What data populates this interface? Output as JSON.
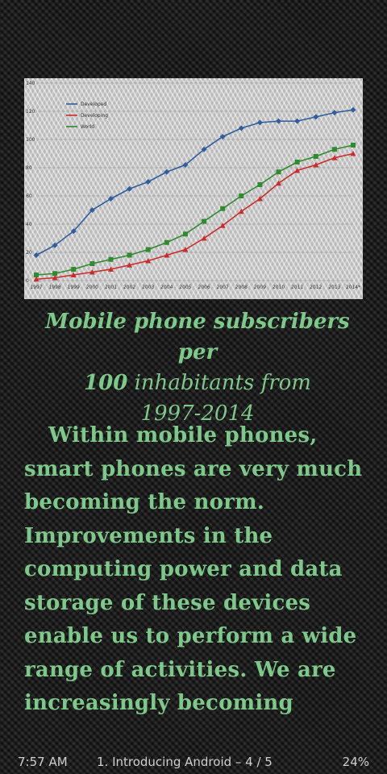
{
  "chart_data": {
    "type": "line",
    "x": [
      "1997",
      "1998",
      "1999",
      "2000",
      "2001",
      "2002",
      "2003",
      "2004",
      "2005",
      "2006",
      "2007",
      "2008",
      "2009",
      "2010",
      "2011",
      "2012",
      "2013",
      "2014*"
    ],
    "series": [
      {
        "name": "Developed",
        "color": "#2f5e9e",
        "marker": "diamond",
        "values": [
          18,
          25,
          35,
          50,
          58,
          65,
          70,
          77,
          82,
          93,
          102,
          108,
          112,
          113,
          113,
          116,
          119,
          121
        ]
      },
      {
        "name": "Developing",
        "color": "#cc2b2b",
        "marker": "triangle",
        "values": [
          1,
          2,
          4,
          6,
          8,
          11,
          14,
          18,
          22,
          30,
          39,
          49,
          58,
          69,
          78,
          82,
          87,
          90
        ]
      },
      {
        "name": "World",
        "color": "#2e8b2e",
        "marker": "square",
        "values": [
          4,
          5,
          8,
          12,
          15,
          18,
          22,
          27,
          33,
          42,
          51,
          60,
          68,
          77,
          84,
          88,
          93,
          96
        ]
      }
    ],
    "yticks": [
      0,
      20,
      40,
      60,
      80,
      100,
      120,
      140
    ],
    "ylim": [
      0,
      140
    ],
    "grid": true,
    "legend": "top-left"
  },
  "caption": {
    "line1": "Mobile phone subscribers per",
    "line2a": "100",
    "line2b": " inhabitants from",
    "line3": "1997-2014"
  },
  "body": {
    "text": "Within mobile phones, smart phones are very much becoming the norm. Improvements in the computing power and data storage of these devices enable us to perform a wide range of activities. We are increasingly becoming"
  },
  "status": {
    "time": "7:57 AM",
    "chapter": "1. Introducing Android – 4 / 5",
    "battery": "24%"
  }
}
